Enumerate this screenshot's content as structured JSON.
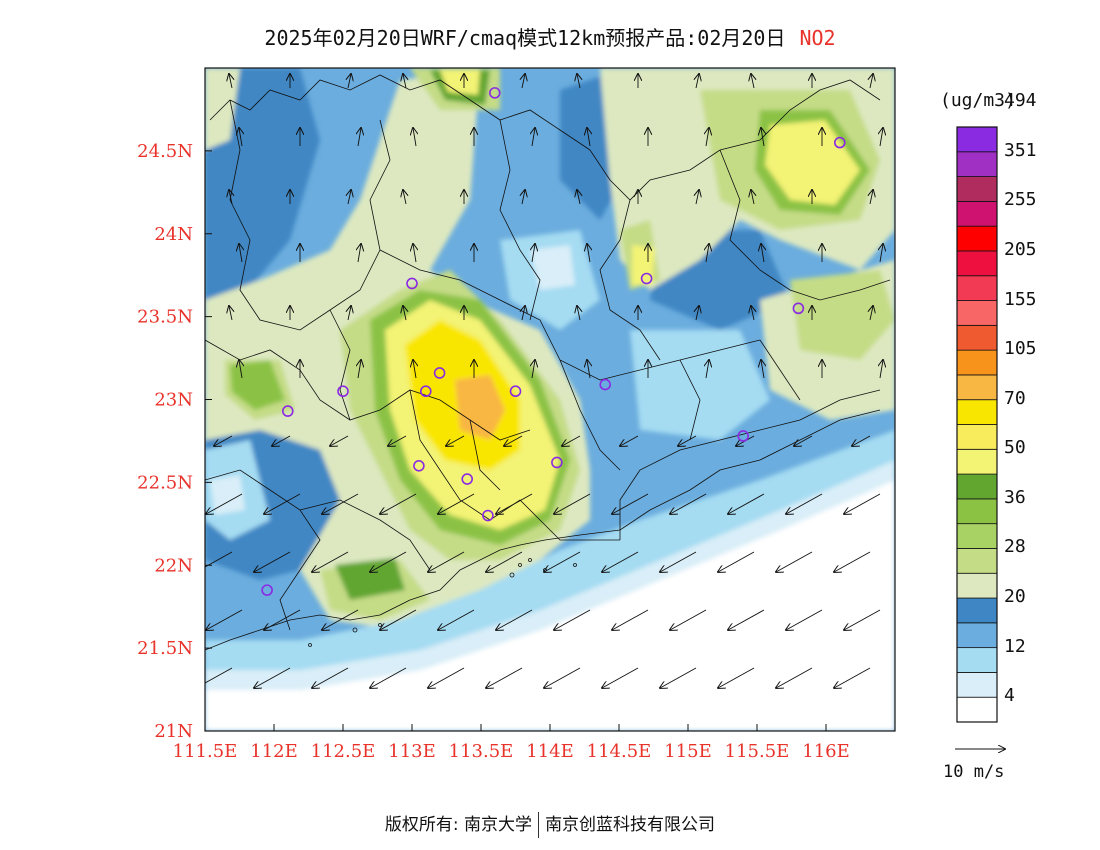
{
  "header": {
    "title": "2025年02月20日WRF/cmaq模式12km预报产品:02月20日",
    "species": "NO2"
  },
  "map": {
    "lon_range": [
      111.5,
      116.5
    ],
    "lat_range": [
      21.0,
      25.0
    ],
    "lon_ticks": [
      "111.5E",
      "112E",
      "112.5E",
      "113E",
      "113.5E",
      "114E",
      "114.5E",
      "115E",
      "115.5E",
      "116E"
    ],
    "lat_ticks": [
      "21N",
      "21.5N",
      "22N",
      "22.5N",
      "23N",
      "23.5N",
      "24N",
      "24.5N"
    ],
    "tick_color": "#e8322a",
    "stations": [
      {
        "lon": 113.6,
        "lat": 24.85
      },
      {
        "lon": 116.1,
        "lat": 24.55
      },
      {
        "lon": 114.7,
        "lat": 23.73
      },
      {
        "lon": 115.8,
        "lat": 23.55
      },
      {
        "lon": 113.0,
        "lat": 23.7
      },
      {
        "lon": 113.2,
        "lat": 23.16
      },
      {
        "lon": 113.1,
        "lat": 23.05
      },
      {
        "lon": 113.75,
        "lat": 23.05
      },
      {
        "lon": 114.4,
        "lat": 23.09
      },
      {
        "lon": 112.1,
        "lat": 22.93
      },
      {
        "lon": 112.5,
        "lat": 23.05
      },
      {
        "lon": 115.4,
        "lat": 22.78
      },
      {
        "lon": 113.05,
        "lat": 22.6
      },
      {
        "lon": 113.4,
        "lat": 22.52
      },
      {
        "lon": 114.05,
        "lat": 22.62
      },
      {
        "lon": 113.55,
        "lat": 22.3
      },
      {
        "lon": 111.95,
        "lat": 21.85
      }
    ]
  },
  "legend": {
    "unit": "(ug/m3)",
    "levels": [
      "4",
      "12",
      "20",
      "28",
      "36",
      "50",
      "70",
      "105",
      "155",
      "205",
      "255",
      "351",
      "494"
    ],
    "colors": [
      "#ffffff",
      "#d9eef8",
      "#a5dcf2",
      "#6badde",
      "#3f87c4",
      "#dde8c0",
      "#c5dc86",
      "#a9d265",
      "#8bc244",
      "#62a630",
      "#f3f374",
      "#f8ec5c",
      "#f9e600",
      "#f8b642",
      "#f7931a",
      "#ef5a30",
      "#f96666",
      "#f23a55",
      "#ee1140",
      "#ff0000",
      "#cf1170",
      "#b02c5e",
      "#a030c4",
      "#8a2be2"
    ],
    "vector_reference": "10 m/s"
  },
  "footer": {
    "copyright_left": "版权所有: 南京大学",
    "copyright_right": "南京创蓝科技有限公司"
  }
}
